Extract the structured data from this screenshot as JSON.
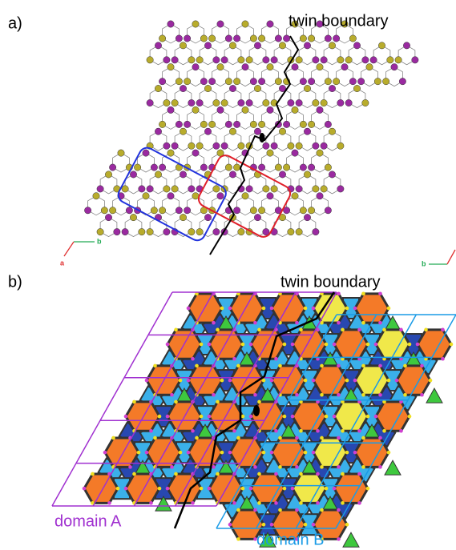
{
  "panel_a": {
    "label": "a)",
    "annotation": "twin boundary",
    "axis_labels": [
      "b",
      "a",
      "b"
    ]
  },
  "panel_b": {
    "label": "b)",
    "annotation": "twin boundary",
    "domains": [
      "domain A",
      "domain B"
    ]
  }
}
